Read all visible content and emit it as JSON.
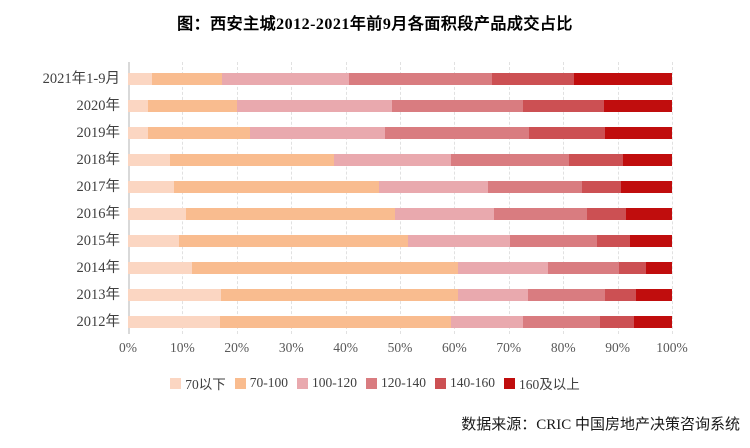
{
  "title": "图：西安主城2012-2021年前9月各面积段产品成交占比",
  "source": "数据来源：CRIC 中国房地产决策咨询系统",
  "axis": {
    "x_tick_labels": [
      "0%",
      "10%",
      "20%",
      "30%",
      "40%",
      "50%",
      "60%",
      "70%",
      "80%",
      "90%",
      "100%"
    ]
  },
  "chart_data": {
    "type": "bar",
    "orientation": "horizontal",
    "stacked": true,
    "title": "图：西安主城2012-2021年前9月各面积段产品成交占比",
    "categories": [
      "2021年1-9月",
      "2020年",
      "2019年",
      "2018年",
      "2017年",
      "2016年",
      "2015年",
      "2014年",
      "2013年",
      "2012年"
    ],
    "xlabel": "",
    "ylabel": "",
    "xlim": [
      0,
      100
    ],
    "x_ticks": [
      0,
      10,
      20,
      30,
      40,
      50,
      60,
      70,
      80,
      90,
      100
    ],
    "grid": "vertical-dashed",
    "legend_position": "bottom",
    "unit": "percent",
    "series": [
      {
        "name": "70以下",
        "color": "#FBD6C2",
        "values": [
          4.4,
          3.6,
          3.6,
          7.7,
          8.5,
          10.7,
          9.4,
          11.8,
          17.1,
          16.9
        ]
      },
      {
        "name": "70-100",
        "color": "#F9BC8F",
        "values": [
          12.9,
          16.5,
          18.8,
          30.1,
          37.7,
          38.4,
          42.1,
          48.8,
          43.5,
          42.5
        ]
      },
      {
        "name": "100-120",
        "color": "#E9A9AE",
        "values": [
          23.3,
          28.4,
          24.8,
          21.5,
          19.9,
          18.2,
          18.7,
          16.6,
          12.9,
          13.3
        ]
      },
      {
        "name": "120-140",
        "color": "#D97C80",
        "values": [
          26.4,
          24.2,
          26.5,
          21.7,
          17.4,
          17.1,
          16.0,
          13.0,
          14.1,
          14.0
        ]
      },
      {
        "name": "140-160",
        "color": "#CC5053",
        "values": [
          15.0,
          14.8,
          14.0,
          10.0,
          7.1,
          7.2,
          6.1,
          5.0,
          5.8,
          6.3
        ]
      },
      {
        "name": "160及以上",
        "color": "#C00D0D",
        "values": [
          18.0,
          12.5,
          12.3,
          9.0,
          9.4,
          8.4,
          7.7,
          4.8,
          6.6,
          7.0
        ]
      }
    ]
  }
}
